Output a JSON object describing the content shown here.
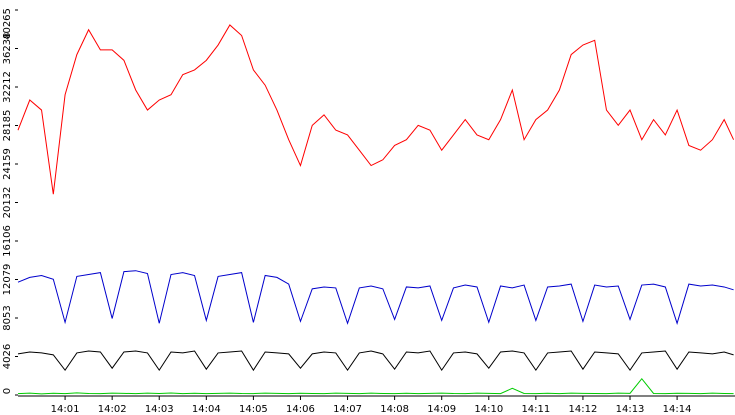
{
  "chart_data": {
    "type": "line",
    "x": [
      0,
      0.25,
      0.5,
      0.75,
      1,
      1.25,
      1.5,
      1.75,
      2,
      2.25,
      2.5,
      2.75,
      3,
      3.25,
      3.5,
      3.75,
      4,
      4.25,
      4.5,
      4.75,
      5,
      5.25,
      5.5,
      5.75,
      6,
      6.25,
      6.5,
      6.75,
      7,
      7.25,
      7.5,
      7.75,
      8,
      8.25,
      8.5,
      8.75,
      9,
      9.25,
      9.5,
      9.75,
      10,
      10.25,
      10.5,
      10.75,
      11,
      11.25,
      11.5,
      11.75,
      12,
      12.25,
      12.5,
      12.75,
      13,
      13.25,
      13.5,
      13.75,
      14,
      14.25,
      14.5,
      14.75,
      15,
      15.2
    ],
    "series": [
      {
        "color": "#ff0000",
        "values": [
          27700,
          30850,
          29800,
          21000,
          31400,
          35600,
          38200,
          36100,
          36100,
          35000,
          31900,
          29800,
          30850,
          31400,
          33500,
          34000,
          35000,
          36600,
          38700,
          37600,
          34000,
          32400,
          29800,
          26700,
          24000,
          28200,
          29300,
          27700,
          27200,
          25600,
          24000,
          24600,
          26100,
          26700,
          28200,
          27700,
          25600,
          27200,
          28800,
          27200,
          26700,
          28800,
          31900,
          26700,
          28800,
          29800,
          31900,
          35600,
          36600,
          37100,
          29800,
          28200,
          29800,
          26700,
          28800,
          27200,
          29800,
          26100,
          25600,
          26700,
          28800,
          26700
        ]
      },
      {
        "color": "#0000cc",
        "values": [
          11800,
          12300,
          12500,
          12100,
          7600,
          12400,
          12600,
          12800,
          8000,
          12900,
          13000,
          12700,
          7500,
          12600,
          12800,
          12500,
          7800,
          12400,
          12600,
          12800,
          7600,
          12500,
          12300,
          11600,
          7700,
          11100,
          11300,
          11200,
          7500,
          11200,
          11400,
          11100,
          7900,
          11300,
          11200,
          11400,
          7800,
          11200,
          11500,
          11300,
          7600,
          11400,
          11200,
          11500,
          7800,
          11300,
          11400,
          11600,
          7700,
          11500,
          11300,
          11400,
          7900,
          11500,
          11600,
          11300,
          7500,
          11600,
          11400,
          11500,
          11300,
          11000
        ]
      },
      {
        "color": "#000000",
        "values": [
          4300,
          4500,
          4400,
          4200,
          2600,
          4400,
          4600,
          4500,
          2800,
          4500,
          4600,
          4400,
          2600,
          4500,
          4400,
          4600,
          2700,
          4400,
          4500,
          4600,
          2600,
          4500,
          4400,
          4300,
          2800,
          4300,
          4500,
          4400,
          2600,
          4400,
          4600,
          4300,
          2700,
          4500,
          4400,
          4600,
          2600,
          4400,
          4500,
          4300,
          2800,
          4500,
          4600,
          4400,
          2600,
          4400,
          4500,
          4600,
          2700,
          4500,
          4400,
          4300,
          2600,
          4400,
          4500,
          4600,
          2700,
          4500,
          4400,
          4300,
          4500,
          4200
        ]
      },
      {
        "color": "#00cc00",
        "values": [
          150,
          200,
          120,
          180,
          150,
          220,
          160,
          140,
          200,
          170,
          150,
          190,
          160,
          210,
          140,
          180,
          150,
          170,
          200,
          160,
          150,
          190,
          170,
          140,
          180,
          160,
          150,
          200,
          170,
          150,
          190,
          160,
          140,
          180,
          150,
          170,
          200,
          160,
          150,
          190,
          170,
          150,
          700,
          160,
          140,
          180,
          150,
          200,
          170,
          160,
          150,
          190,
          170,
          1700,
          160,
          150,
          180,
          170,
          150,
          190,
          160,
          150
        ]
      }
    ],
    "xlim": [
      0,
      15.23
    ],
    "xticks": [
      {
        "value": 1,
        "label": "14:01"
      },
      {
        "value": 2,
        "label": "14:02"
      },
      {
        "value": 3,
        "label": "14:03"
      },
      {
        "value": 4,
        "label": "14:04"
      },
      {
        "value": 5,
        "label": "14:05"
      },
      {
        "value": 6,
        "label": "14:06"
      },
      {
        "value": 7,
        "label": "14:07"
      },
      {
        "value": 8,
        "label": "14:08"
      },
      {
        "value": 9,
        "label": "14:09"
      },
      {
        "value": 10,
        "label": "14:10"
      },
      {
        "value": 11,
        "label": "14:11"
      },
      {
        "value": 12,
        "label": "14:12"
      },
      {
        "value": 13,
        "label": "14:13"
      },
      {
        "value": 14,
        "label": "14:14"
      }
    ],
    "ylim": [
      0,
      40265
    ],
    "yticks": [
      0,
      4026,
      8053,
      12079,
      16106,
      20132,
      24159,
      28185,
      32212,
      36238,
      40265
    ]
  }
}
